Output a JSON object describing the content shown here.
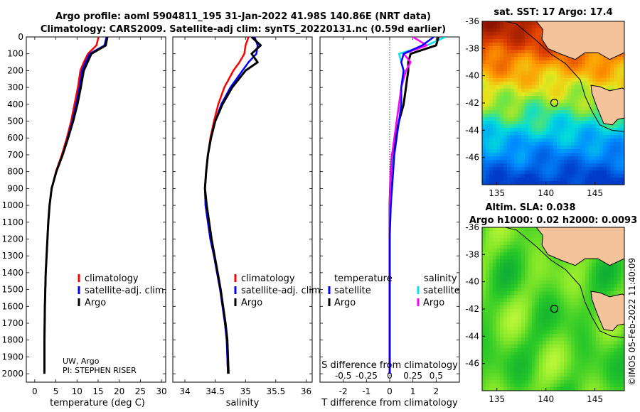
{
  "header": {
    "title_line1": "Argo profile: aoml 5904811_195 31-Jan-2022 41.98S 140.86E (NRT data)",
    "title_line2": "Climatology: CARS2009. Satellite-adj clim: synTS_20220131.nc (0.59d earlier)"
  },
  "colors": {
    "climatology": "#ff0000",
    "satellite": "#0000ff",
    "argo": "#000000",
    "sal_satellite": "#00e5ee",
    "sal_argo": "#ff00ff"
  },
  "panels": {
    "temperature": {
      "xlabel": "temperature (deg C)",
      "legend": [
        "climatology",
        "satellite-adj. clim.",
        "Argo"
      ],
      "note1": "UW, Argo",
      "note2": "PI: STEPHEN RISER"
    },
    "salinity": {
      "xlabel": "salinity",
      "legend": [
        "climatology",
        "satellite-adj. clim.",
        "Argo"
      ]
    },
    "difference": {
      "xlabel": "T difference from climatology",
      "top_label": "S difference from climatology",
      "s_ticks": [
        "-0.5",
        "-0.25",
        "0",
        "0.25",
        "0.5"
      ],
      "legend_temp_title": "temperature",
      "legend_sal_title": "salinity",
      "legend_items": [
        "satellite",
        "Argo"
      ]
    },
    "sst_map": {
      "title": "sat. SST: 17 Argo: 17.4"
    },
    "sla_map": {
      "title1": "Altim. SLA: 0.038",
      "title2": "Argo h1000: 0.02 h2000: 0.0093"
    }
  },
  "stamp": "©IMOS 05-Feb-2022 11:40:09",
  "chart_data": [
    {
      "type": "line",
      "panel": "temperature",
      "xlabel": "temperature (deg C)",
      "xlim": [
        -2,
        31
      ],
      "xticks": [
        0,
        5,
        10,
        15,
        20,
        25,
        30
      ],
      "ylim": [
        2050,
        0
      ],
      "yticks": [
        0,
        100,
        200,
        300,
        400,
        500,
        600,
        700,
        800,
        900,
        1000,
        1100,
        1200,
        1300,
        1400,
        1500,
        1600,
        1700,
        1800,
        1900,
        2000
      ],
      "series": [
        {
          "name": "climatology",
          "x": [
            15.1,
            14.6,
            12.6,
            11.6,
            10.8,
            10.2,
            9.4,
            8.6,
            7.6,
            6.4,
            5.0,
            4.0,
            3.5,
            3.2,
            3.0,
            2.8,
            2.6,
            2.5,
            2.4,
            2.3,
            2.3
          ],
          "depth": [
            0,
            50,
            100,
            150,
            200,
            300,
            400,
            500,
            600,
            700,
            800,
            900,
            1000,
            1100,
            1200,
            1300,
            1400,
            1500,
            1600,
            1800,
            2000
          ]
        },
        {
          "name": "satellite-adj. clim.",
          "x": [
            17.0,
            16.5,
            13.0,
            12.0,
            11.2,
            10.6,
            9.8,
            8.9,
            7.8,
            6.6,
            5.1,
            4.0,
            3.5,
            3.2,
            3.0,
            2.8,
            2.6,
            2.5,
            2.4,
            2.3,
            2.3
          ],
          "depth": [
            0,
            50,
            100,
            150,
            200,
            300,
            400,
            500,
            600,
            700,
            800,
            900,
            1000,
            1100,
            1200,
            1300,
            1400,
            1500,
            1600,
            1800,
            2000
          ]
        },
        {
          "name": "Argo",
          "x": [
            17.2,
            16.8,
            13.4,
            12.5,
            11.6,
            10.9,
            10.1,
            9.1,
            7.9,
            6.6,
            5.1,
            4.0,
            3.5,
            3.2,
            3.0,
            2.8,
            2.6,
            2.5,
            2.4,
            2.3,
            2.3
          ],
          "depth": [
            0,
            50,
            100,
            150,
            200,
            300,
            400,
            500,
            600,
            700,
            800,
            900,
            1000,
            1100,
            1200,
            1300,
            1400,
            1500,
            1600,
            1800,
            2000
          ]
        }
      ]
    },
    {
      "type": "line",
      "panel": "salinity",
      "xlabel": "salinity",
      "xlim": [
        33.8,
        36.1
      ],
      "xticks": [
        34,
        34.5,
        35,
        35.5,
        36
      ],
      "ylim": [
        2050,
        0
      ],
      "series": [
        {
          "name": "climatology",
          "x": [
            35.05,
            35.0,
            34.98,
            34.9,
            34.8,
            34.65,
            34.55,
            34.48,
            34.42,
            34.38,
            34.35,
            34.33,
            34.34,
            34.38,
            34.42,
            34.48,
            34.53,
            34.58,
            34.62,
            34.66,
            34.69,
            34.71
          ],
          "depth": [
            0,
            50,
            100,
            150,
            200,
            300,
            400,
            500,
            600,
            700,
            800,
            900,
            1000,
            1100,
            1200,
            1300,
            1400,
            1500,
            1600,
            1700,
            1800,
            2000
          ]
        },
        {
          "name": "satellite-adj. clim.",
          "x": [
            35.15,
            35.2,
            35.18,
            35.05,
            34.95,
            34.75,
            34.6,
            34.5,
            34.43,
            34.38,
            34.35,
            34.33,
            34.34,
            34.38,
            34.42,
            34.48,
            34.53,
            34.58,
            34.62,
            34.66,
            34.69,
            34.71
          ],
          "depth": [
            0,
            50,
            100,
            150,
            200,
            300,
            400,
            500,
            600,
            700,
            800,
            900,
            1000,
            1100,
            1200,
            1300,
            1400,
            1500,
            1600,
            1700,
            1800,
            2000
          ]
        },
        {
          "name": "Argo",
          "x": [
            35.1,
            35.25,
            35.1,
            35.2,
            35.0,
            34.78,
            34.62,
            34.5,
            34.43,
            34.38,
            34.35,
            34.33,
            34.36,
            34.4,
            34.44,
            34.49,
            34.54,
            34.59,
            34.63,
            34.67,
            34.7,
            34.72
          ],
          "depth": [
            0,
            50,
            100,
            150,
            200,
            300,
            400,
            500,
            600,
            700,
            800,
            900,
            1000,
            1100,
            1200,
            1300,
            1400,
            1500,
            1600,
            1700,
            1800,
            2000
          ]
        }
      ]
    },
    {
      "type": "line",
      "panel": "difference",
      "xlabel": "T difference from climatology",
      "xlim": [
        -3,
        3
      ],
      "xticks": [
        -2,
        -1,
        0,
        1,
        2
      ],
      "s_scale_note": "S difference axis maps -0.5..0.5 onto -2..2",
      "ylim": [
        2050,
        0
      ],
      "series": [
        {
          "name": "temperature satellite",
          "x": [
            1.9,
            1.4,
            0.6,
            0.5,
            0.6,
            0.5,
            0.5,
            0.4,
            0.3,
            0.2,
            0.15,
            0.1,
            0.05,
            0,
            0,
            0,
            0
          ],
          "depth": [
            0,
            50,
            100,
            150,
            200,
            300,
            400,
            500,
            600,
            700,
            800,
            900,
            1000,
            1200,
            1500,
            1800,
            2000
          ]
        },
        {
          "name": "temperature Argo",
          "x": [
            2.1,
            2.0,
            0.9,
            0.8,
            0.8,
            0.7,
            0.6,
            0.4,
            0.25,
            0.1,
            0.05,
            0.02,
            0,
            0,
            0,
            0,
            0
          ],
          "depth": [
            0,
            50,
            100,
            150,
            200,
            300,
            400,
            500,
            600,
            700,
            800,
            900,
            1000,
            1200,
            1500,
            1800,
            2000
          ]
        },
        {
          "name": "salinity satellite",
          "x": [
            2.4,
            1.6,
            0.4,
            0.5,
            0.6,
            0.5,
            0.4,
            0.3,
            0.2,
            0.15,
            0.1,
            0.05,
            0,
            0,
            0,
            0,
            0
          ],
          "depth": [
            0,
            50,
            100,
            150,
            200,
            300,
            400,
            500,
            600,
            700,
            800,
            900,
            1000,
            1200,
            1500,
            1800,
            2000
          ]
        },
        {
          "name": "salinity Argo",
          "x": [
            1.0,
            1.6,
            0.6,
            0.9,
            0.7,
            0.5,
            0.4,
            0.3,
            0.2,
            0.1,
            0.05,
            0.02,
            0,
            0,
            0,
            0,
            0
          ],
          "depth": [
            0,
            50,
            100,
            150,
            200,
            300,
            400,
            500,
            600,
            700,
            800,
            900,
            1000,
            1200,
            1500,
            1800,
            2000
          ]
        }
      ]
    },
    {
      "type": "heatmap",
      "panel": "sst_map",
      "title": "sat. SST: 17 Argo: 17.4",
      "xlim": [
        133.5,
        148
      ],
      "ylim": [
        -48,
        -36
      ],
      "xticks": [
        135,
        140,
        145
      ],
      "yticks": [
        -36,
        -38,
        -40,
        -42,
        -44,
        -46
      ],
      "argo_location": [
        140.86,
        -41.98
      ]
    },
    {
      "type": "heatmap",
      "panel": "sla_map",
      "title": "Altim. SLA: 0.038",
      "xlim": [
        133.5,
        148
      ],
      "ylim": [
        -48,
        -36
      ],
      "xticks": [
        135,
        140,
        145
      ],
      "yticks": [
        -36,
        -38,
        -40,
        -42,
        -44,
        -46
      ],
      "argo_location": [
        140.86,
        -41.98
      ]
    }
  ]
}
